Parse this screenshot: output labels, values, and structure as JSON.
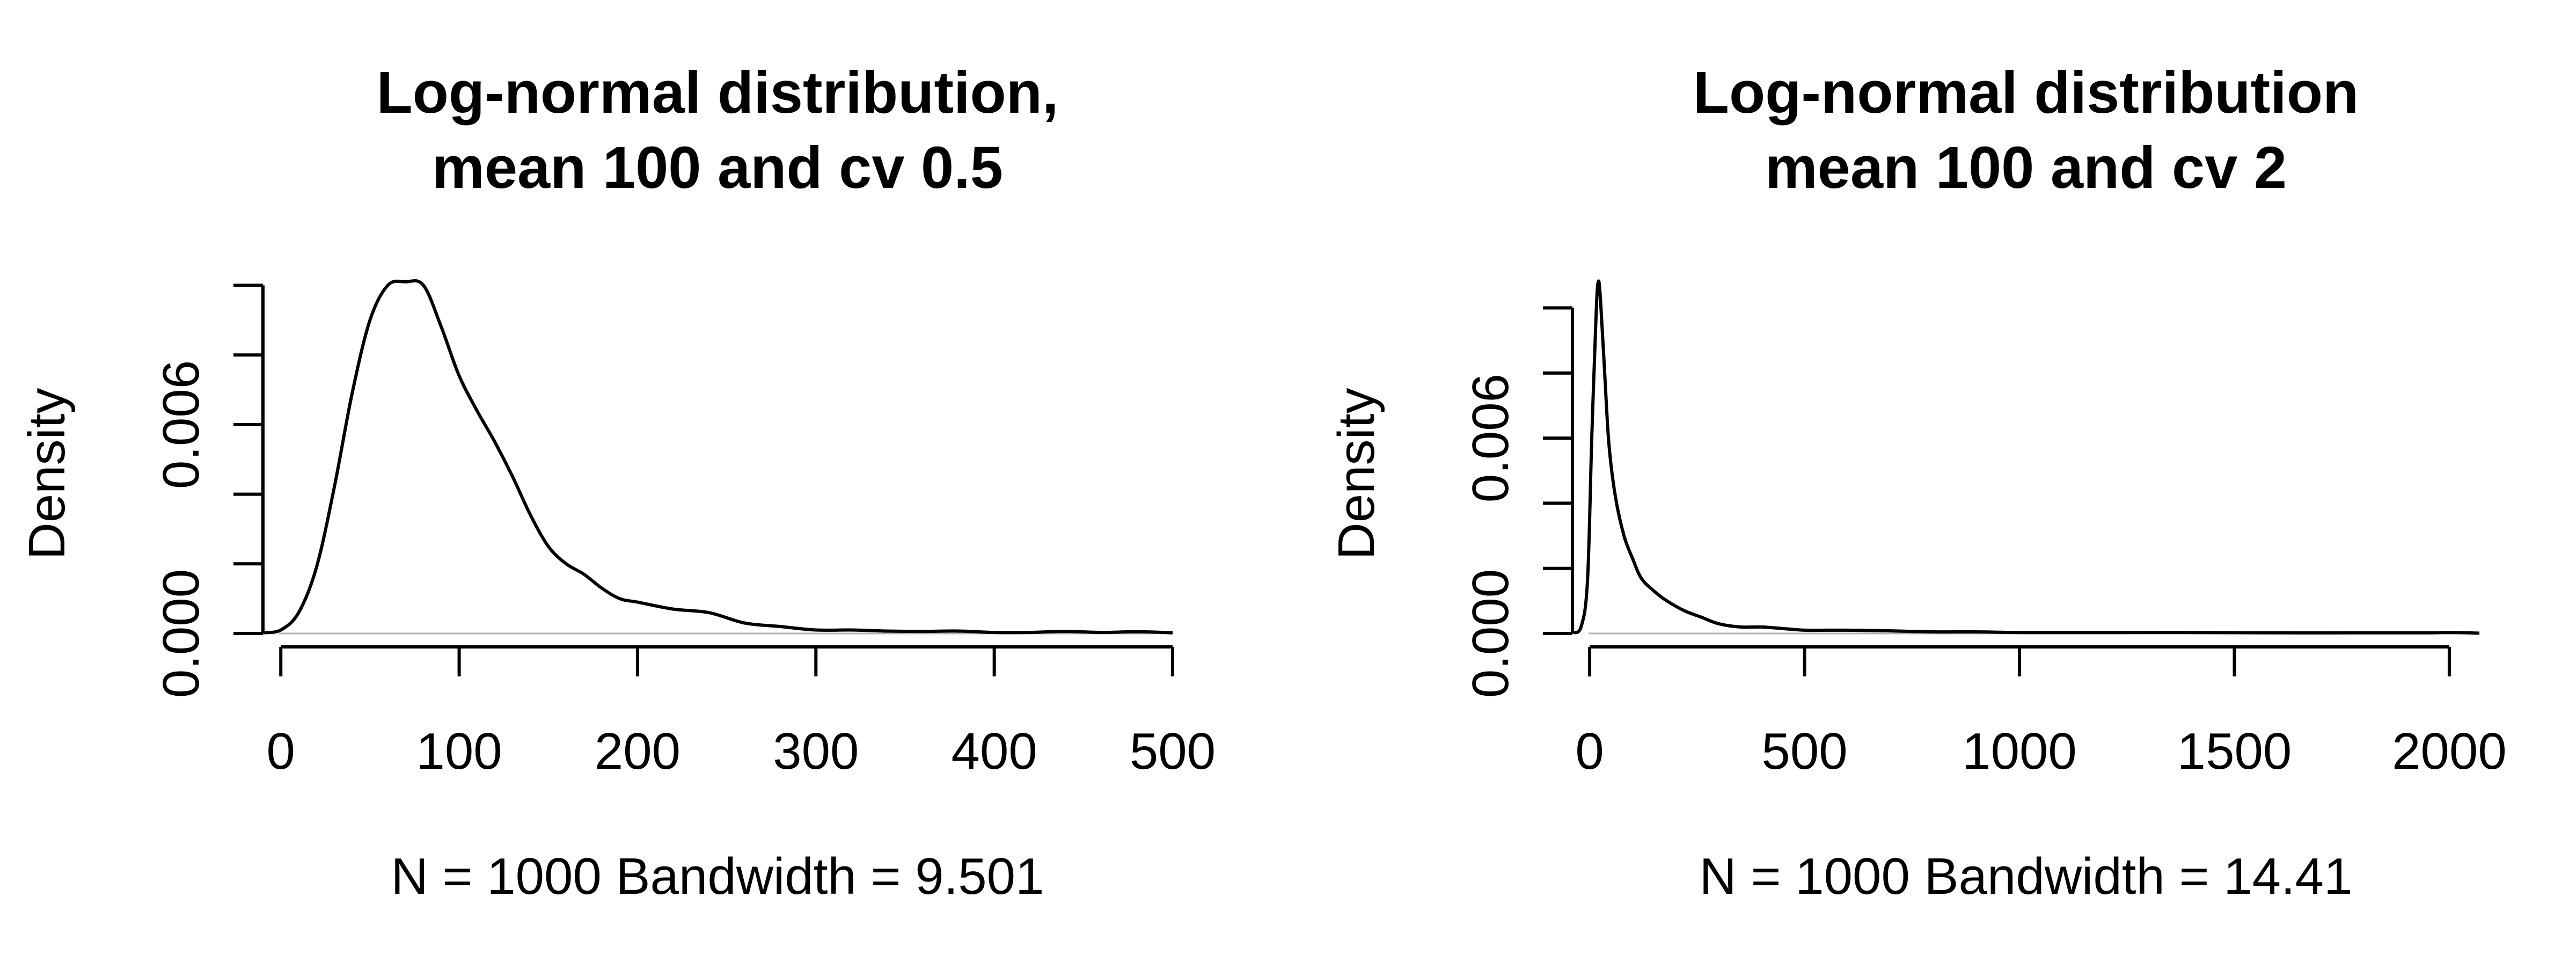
{
  "chart_data": [
    {
      "type": "line",
      "title_lines": [
        "Log-normal distribution,",
        "mean 100 and cv 0.5"
      ],
      "xlabel": "N = 1000   Bandwidth = 9.501",
      "ylabel": "Density",
      "xlim": [
        -10,
        500
      ],
      "ylim": [
        0,
        0.0101
      ],
      "x_ticks": [
        0,
        100,
        200,
        300,
        400,
        500
      ],
      "x_tick_labels": [
        "0",
        "100",
        "200",
        "300",
        "400",
        "500"
      ],
      "y_ticks": [
        0,
        0.002,
        0.004,
        0.006,
        0.008,
        0.01
      ],
      "y_tick_labels": [
        "0.000",
        "",
        "",
        "0.006",
        "",
        ""
      ],
      "baseline": 0,
      "grid": false,
      "series": [
        {
          "x": [
            -10,
            0,
            10,
            20,
            30,
            40,
            50,
            60,
            70,
            80,
            90,
            100,
            110,
            120,
            130,
            140,
            150,
            160,
            170,
            180,
            190,
            200,
            220,
            240,
            260,
            280,
            300,
            320,
            340,
            360,
            380,
            400,
            420,
            440,
            460,
            480,
            500
          ],
          "y": [
            2e-05,
            0.0001,
            0.0006,
            0.0019,
            0.0042,
            0.0069,
            0.009,
            0.01,
            0.0101,
            0.01,
            0.0088,
            0.0074,
            0.0064,
            0.0055,
            0.0045,
            0.0034,
            0.0025,
            0.002,
            0.0017,
            0.0013,
            0.001,
            0.0009,
            0.0007,
            0.0006,
            0.0003,
            0.0002,
            0.0001,
            0.0001,
            7e-05,
            6e-05,
            7e-05,
            3e-05,
            3e-05,
            6e-05,
            3e-05,
            5e-05,
            2e-05
          ]
        }
      ]
    },
    {
      "type": "line",
      "title_lines": [
        "Log-normal distribution",
        "mean 100 and cv 2"
      ],
      "xlabel": "N = 1000   Bandwidth = 14.41",
      "ylabel": "Density",
      "xlim": [
        -40,
        2070
      ],
      "ylim": [
        0,
        0.0108
      ],
      "x_ticks": [
        0,
        500,
        1000,
        1500,
        2000
      ],
      "x_tick_labels": [
        "0",
        "500",
        "1000",
        "1500",
        "2000"
      ],
      "y_ticks": [
        0,
        0.002,
        0.004,
        0.006,
        0.008,
        0.01
      ],
      "y_tick_labels": [
        "0.000",
        "",
        "",
        "0.006",
        "",
        ""
      ],
      "baseline": 0,
      "grid": false,
      "series": [
        {
          "x": [
            -40,
            -20,
            -5,
            5,
            15,
            20,
            25,
            35,
            45,
            60,
            80,
            100,
            120,
            150,
            180,
            220,
            260,
            300,
            350,
            400,
            450,
            500,
            550,
            600,
            700,
            800,
            900,
            1000,
            1200,
            1400,
            1600,
            1800,
            1950,
            2000,
            2070
          ],
          "y": [
            3e-05,
            0.0002,
            0.0016,
            0.006,
            0.0098,
            0.0108,
            0.0103,
            0.008,
            0.0058,
            0.0042,
            0.003,
            0.0023,
            0.0017,
            0.0013,
            0.001,
            0.0007,
            0.0005,
            0.0003,
            0.0002,
            0.0002,
            0.00015,
            0.0001,
            0.0001,
            0.0001,
            8e-05,
            5e-05,
            5e-05,
            3e-05,
            3e-05,
            3e-05,
            2e-05,
            2e-05,
            2e-05,
            3e-05,
            1e-05
          ]
        }
      ]
    }
  ]
}
